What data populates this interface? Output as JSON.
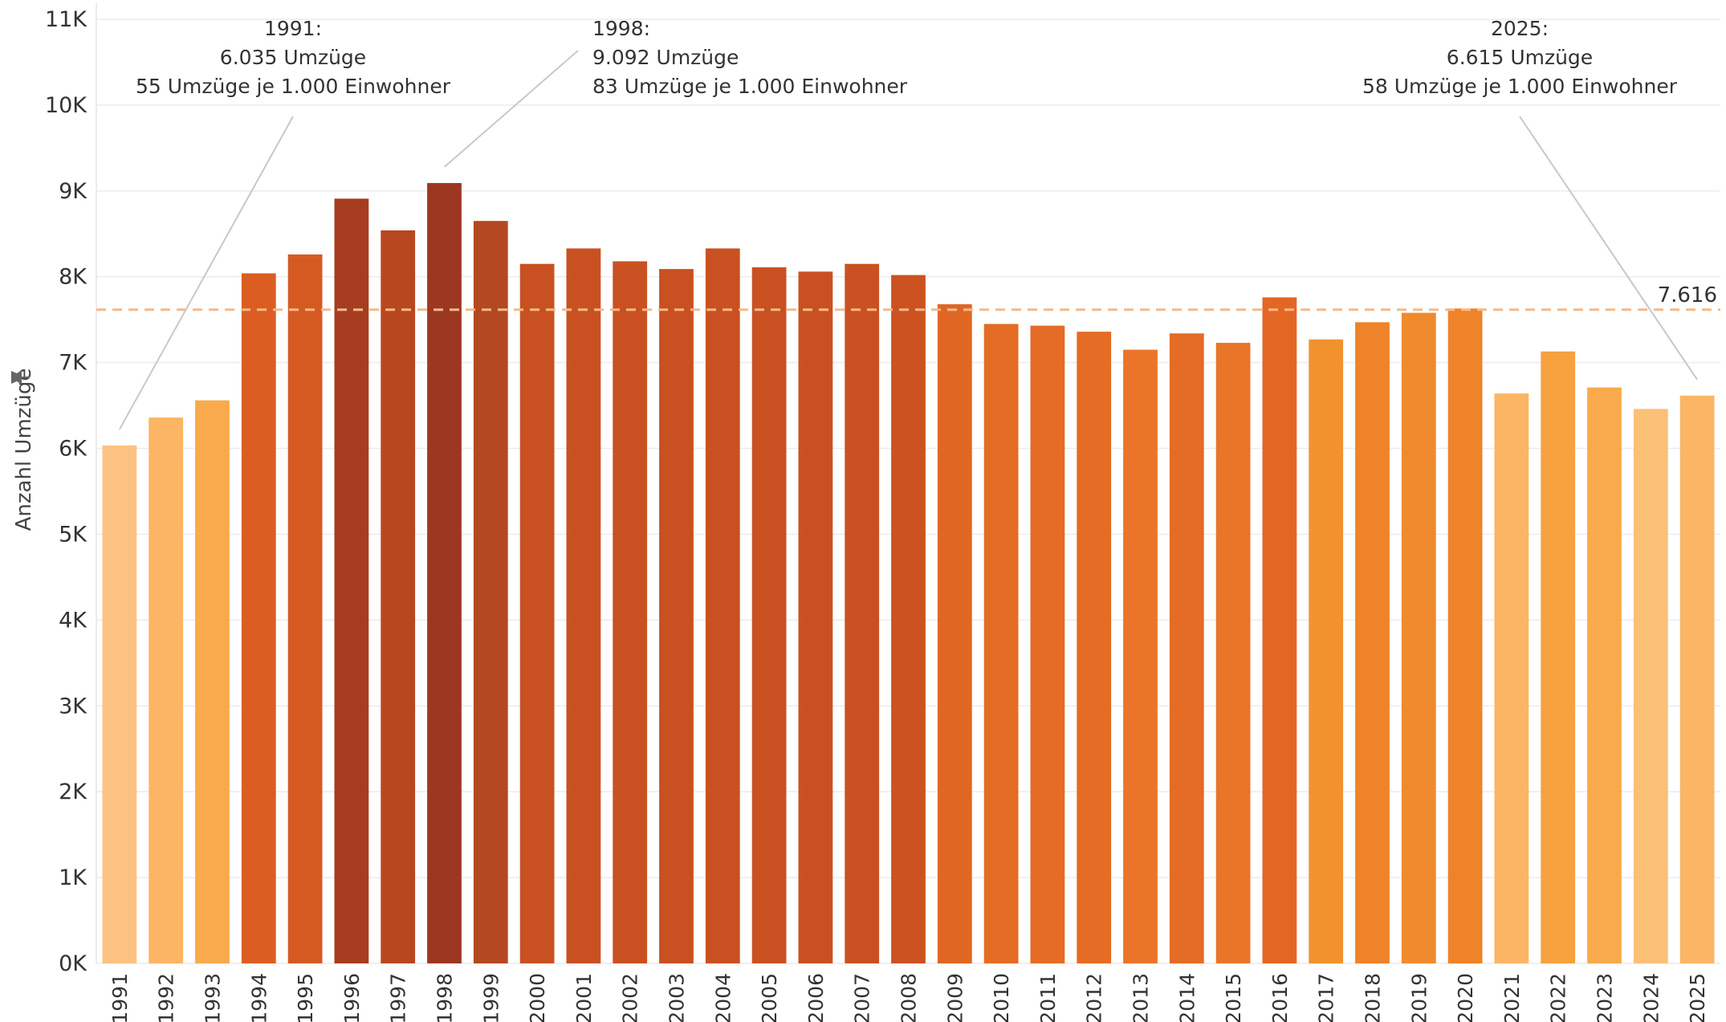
{
  "chart_data": {
    "type": "bar",
    "ylabel": "Anzahl Umzüge",
    "ylim": [
      0,
      11000
    ],
    "y_ticks": [
      "0K",
      "1K",
      "2K",
      "3K",
      "4K",
      "5K",
      "6K",
      "7K",
      "8K",
      "9K",
      "10K",
      "11K"
    ],
    "grid": true,
    "categories": [
      "1991",
      "1992",
      "1993",
      "1994",
      "1995",
      "1996",
      "1997",
      "1998",
      "1999",
      "2000",
      "2001",
      "2002",
      "2003",
      "2004",
      "2005",
      "2006",
      "2007",
      "2008",
      "2009",
      "2010",
      "2011",
      "2012",
      "2013",
      "2014",
      "2015",
      "2016",
      "2017",
      "2018",
      "2019",
      "2020",
      "2021",
      "2022",
      "2023",
      "2024",
      "2025"
    ],
    "values": [
      6035,
      6360,
      6560,
      8040,
      8260,
      8910,
      8540,
      9092,
      8650,
      8150,
      8330,
      8180,
      8090,
      8330,
      8110,
      8060,
      8150,
      8020,
      7680,
      7450,
      7430,
      7360,
      7150,
      7340,
      7230,
      7760,
      7270,
      7470,
      7580,
      7630,
      6640,
      7130,
      6710,
      6460,
      6615
    ],
    "colors": [
      "#fdc281",
      "#fbb565",
      "#f8aa4c",
      "#db5d22",
      "#d55a22",
      "#a63d20",
      "#b84720",
      "#9c3821",
      "#b44820",
      "#c95121",
      "#c95121",
      "#c95121",
      "#c95121",
      "#c95121",
      "#c95121",
      "#c95121",
      "#c95121",
      "#cc5221",
      "#e06624",
      "#e46c25",
      "#e46c25",
      "#e46c25",
      "#ea7529",
      "#e46c25",
      "#ea7529",
      "#e46624",
      "#f2922f",
      "#ee8329",
      "#f08a2e",
      "#ee8329",
      "#fbb565",
      "#f7a13f",
      "#f8aa4c",
      "#fcbf76",
      "#fbb565"
    ],
    "reference_line": {
      "value": 7616,
      "label": "7.616",
      "color": "#f5b98a"
    },
    "annotations": [
      {
        "category": "1991",
        "lines": [
          "1991:",
          "6.035 Umzüge",
          "55 Umzüge je 1.000 Einwohner"
        ]
      },
      {
        "category": "1998",
        "lines": [
          "1998:",
          "9.092 Umzüge",
          "83 Umzüge je 1.000 Einwohner"
        ]
      },
      {
        "category": "2025",
        "lines": [
          "2025:",
          "6.615 Umzüge",
          "58 Umzüge je 1.000 Einwohner"
        ]
      }
    ]
  }
}
